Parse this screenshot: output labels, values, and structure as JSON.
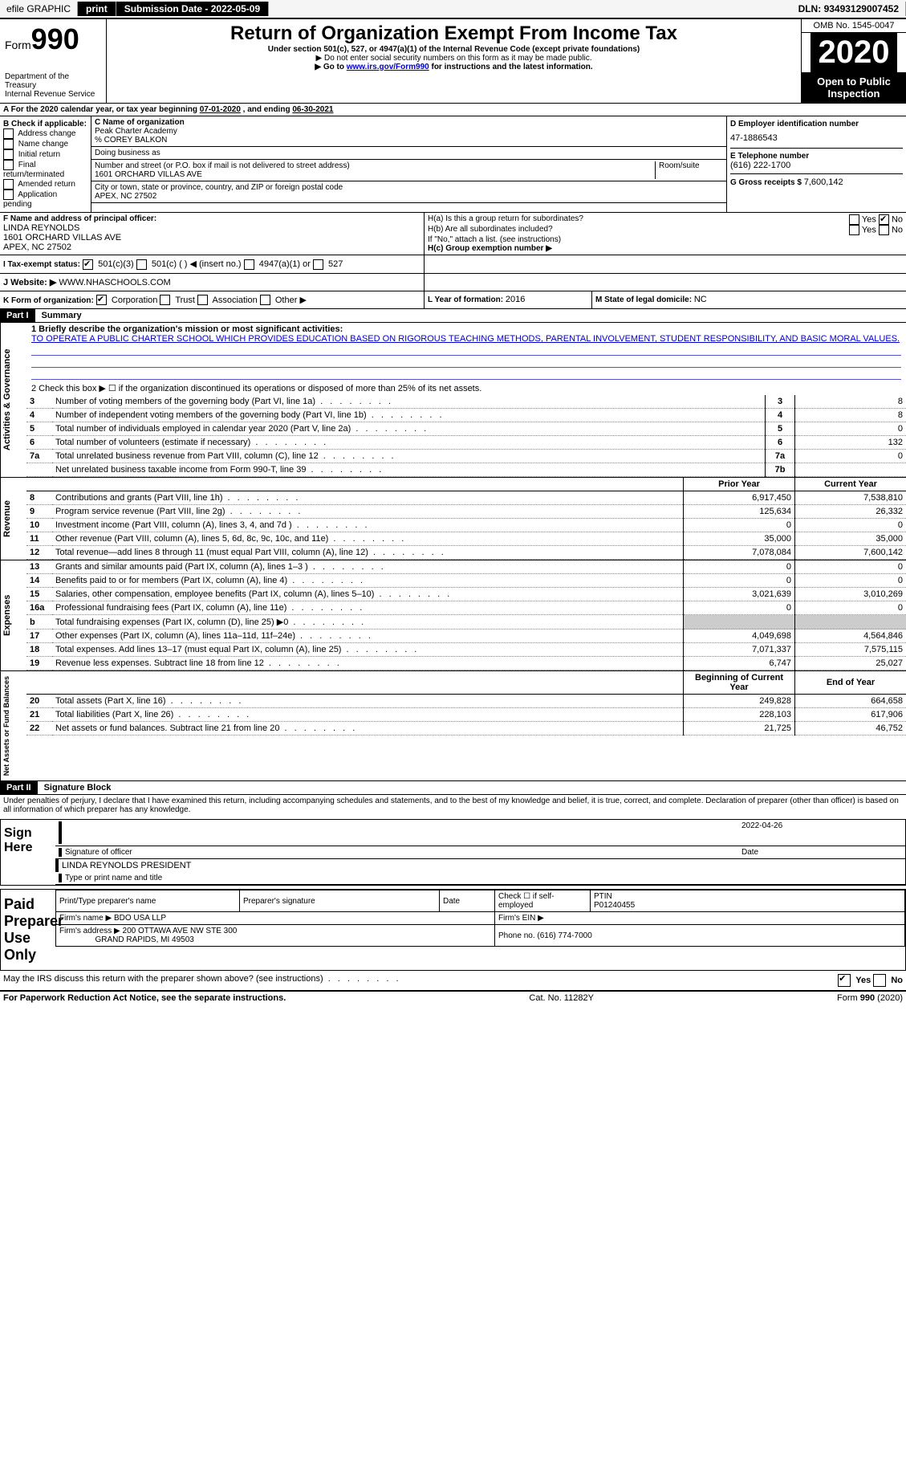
{
  "topbar": {
    "efile": "efile GRAPHIC",
    "print": "print",
    "submission_label": "Submission Date - ",
    "submission_date": "2022-05-09",
    "dln_label": "DLN: ",
    "dln": "93493129007452"
  },
  "header": {
    "form_label": "Form",
    "form_number": "990",
    "dept": "Department of the Treasury",
    "irs": "Internal Revenue Service",
    "title": "Return of Organization Exempt From Income Tax",
    "subtitle": "Under section 501(c), 527, or 4947(a)(1) of the Internal Revenue Code (except private foundations)",
    "note1": "▶ Do not enter social security numbers on this form as it may be made public.",
    "note2_pre": "▶ Go to ",
    "note2_link": "www.irs.gov/Form990",
    "note2_post": " for instructions and the latest information.",
    "omb": "OMB No. 1545-0047",
    "year": "2020",
    "open_public": "Open to Public Inspection"
  },
  "sectionA": {
    "text_pre": "A For the 2020 calendar year, or tax year beginning ",
    "begin": "07-01-2020",
    "mid": " , and ending ",
    "end": "06-30-2021"
  },
  "sectionB": {
    "label": "B Check if applicable:",
    "items": [
      "Address change",
      "Name change",
      "Initial return",
      "Final return/terminated",
      "Amended return",
      "Application pending"
    ]
  },
  "sectionC": {
    "name_label": "C Name of organization",
    "name": "Peak Charter Academy",
    "care_of": "% COREY BALKON",
    "dba_label": "Doing business as",
    "addr_label": "Number and street (or P.O. box if mail is not delivered to street address)",
    "room_label": "Room/suite",
    "addr": "1601 ORCHARD VILLAS AVE",
    "city_label": "City or town, state or province, country, and ZIP or foreign postal code",
    "city": "APEX, NC  27502"
  },
  "sectionD": {
    "label": "D Employer identification number",
    "ein": "47-1886543"
  },
  "sectionE": {
    "label": "E Telephone number",
    "phone": "(616) 222-1700"
  },
  "sectionG": {
    "label": "G Gross receipts $ ",
    "amount": "7,600,142"
  },
  "sectionF": {
    "label": "F  Name and address of principal officer:",
    "name": "LINDA REYNOLDS",
    "addr1": "1601 ORCHARD VILLAS AVE",
    "addr2": "APEX, NC  27502"
  },
  "sectionH": {
    "a": "H(a)  Is this a group return for subordinates?",
    "b": "H(b)  Are all subordinates included?",
    "b_note": "If \"No,\" attach a list. (see instructions)",
    "c": "H(c)  Group exemption number ▶",
    "yes": "Yes",
    "no": "No"
  },
  "sectionI": {
    "label": "I    Tax-exempt status:",
    "o1": "501(c)(3)",
    "o2": "501(c) (   ) ◀ (insert no.)",
    "o3": "4947(a)(1) or",
    "o4": "527"
  },
  "sectionJ": {
    "label": "J    Website: ▶",
    "value": " WWW.NHASCHOOLS.COM"
  },
  "sectionK": {
    "label": "K Form of organization:",
    "o1": "Corporation",
    "o2": "Trust",
    "o3": "Association",
    "o4": "Other ▶"
  },
  "sectionL": {
    "label": "L Year of formation: ",
    "val": "2016"
  },
  "sectionM": {
    "label": "M State of legal domicile: ",
    "val": "NC"
  },
  "parts": {
    "p1": "Part I",
    "p1t": "Summary",
    "p2": "Part II",
    "p2t": "Signature Block"
  },
  "summary": {
    "l1": "1   Briefly describe the organization's mission or most significant activities:",
    "mission": "TO OPERATE A PUBLIC CHARTER SCHOOL WHICH PROVIDES EDUCATION BASED ON RIGOROUS TEACHING METHODS, PARENTAL INVOLVEMENT, STUDENT RESPONSIBILITY, AND BASIC MORAL VALUES.",
    "l2": "2   Check this box ▶ ☐  if the organization discontinued its operations or disposed of more than 25% of its net assets.",
    "rows_gov": [
      {
        "n": "3",
        "t": "Number of voting members of the governing body (Part VI, line 1a)",
        "l": "3",
        "v": "8"
      },
      {
        "n": "4",
        "t": "Number of independent voting members of the governing body (Part VI, line 1b)",
        "l": "4",
        "v": "8"
      },
      {
        "n": "5",
        "t": "Total number of individuals employed in calendar year 2020 (Part V, line 2a)",
        "l": "5",
        "v": "0"
      },
      {
        "n": "6",
        "t": "Total number of volunteers (estimate if necessary)",
        "l": "6",
        "v": "132"
      },
      {
        "n": "7a",
        "t": "Total unrelated business revenue from Part VIII, column (C), line 12",
        "l": "7a",
        "v": "0"
      },
      {
        "n": "",
        "t": "Net unrelated business taxable income from Form 990-T, line 39",
        "l": "7b",
        "v": ""
      }
    ],
    "col_prior": "Prior Year",
    "col_current": "Current Year",
    "rows_rev": [
      {
        "n": "8",
        "t": "Contributions and grants (Part VIII, line 1h)",
        "p": "6,917,450",
        "c": "7,538,810"
      },
      {
        "n": "9",
        "t": "Program service revenue (Part VIII, line 2g)",
        "p": "125,634",
        "c": "26,332"
      },
      {
        "n": "10",
        "t": "Investment income (Part VIII, column (A), lines 3, 4, and 7d )",
        "p": "0",
        "c": "0"
      },
      {
        "n": "11",
        "t": "Other revenue (Part VIII, column (A), lines 5, 6d, 8c, 9c, 10c, and 11e)",
        "p": "35,000",
        "c": "35,000"
      },
      {
        "n": "12",
        "t": "Total revenue—add lines 8 through 11 (must equal Part VIII, column (A), line 12)",
        "p": "7,078,084",
        "c": "7,600,142"
      }
    ],
    "rows_exp": [
      {
        "n": "13",
        "t": "Grants and similar amounts paid (Part IX, column (A), lines 1–3 )",
        "p": "0",
        "c": "0"
      },
      {
        "n": "14",
        "t": "Benefits paid to or for members (Part IX, column (A), line 4)",
        "p": "0",
        "c": "0"
      },
      {
        "n": "15",
        "t": "Salaries, other compensation, employee benefits (Part IX, column (A), lines 5–10)",
        "p": "3,021,639",
        "c": "3,010,269"
      },
      {
        "n": "16a",
        "t": "Professional fundraising fees (Part IX, column (A), line 11e)",
        "p": "0",
        "c": "0"
      },
      {
        "n": "b",
        "t": "Total fundraising expenses (Part IX, column (D), line 25) ▶0",
        "p": "",
        "c": "",
        "shade": true
      },
      {
        "n": "17",
        "t": "Other expenses (Part IX, column (A), lines 11a–11d, 11f–24e)",
        "p": "4,049,698",
        "c": "4,564,846"
      },
      {
        "n": "18",
        "t": "Total expenses. Add lines 13–17 (must equal Part IX, column (A), line 25)",
        "p": "7,071,337",
        "c": "7,575,115"
      },
      {
        "n": "19",
        "t": "Revenue less expenses. Subtract line 18 from line 12",
        "p": "6,747",
        "c": "25,027"
      }
    ],
    "col_begin": "Beginning of Current Year",
    "col_end": "End of Year",
    "rows_net": [
      {
        "n": "20",
        "t": "Total assets (Part X, line 16)",
        "p": "249,828",
        "c": "664,658"
      },
      {
        "n": "21",
        "t": "Total liabilities (Part X, line 26)",
        "p": "228,103",
        "c": "617,906"
      },
      {
        "n": "22",
        "t": "Net assets or fund balances. Subtract line 21 from line 20",
        "p": "21,725",
        "c": "46,752"
      }
    ],
    "vlabels": {
      "gov": "Activities & Governance",
      "rev": "Revenue",
      "exp": "Expenses",
      "net": "Net Assets or Fund Balances"
    }
  },
  "sig": {
    "penalty": "Under penalties of perjury, I declare that I have examined this return, including accompanying schedules and statements, and to the best of my knowledge and belief, it is true, correct, and complete. Declaration of preparer (other than officer) is based on all information of which preparer has any knowledge.",
    "sign_here": "Sign Here",
    "sig_officer": "Signature of officer",
    "date_label": "Date",
    "sig_date": "2022-04-26",
    "officer_name": "LINDA REYNOLDS  PRESIDENT",
    "type_name": "Type or print name and title",
    "paid": "Paid Preparer Use Only",
    "preparer_name_label": "Print/Type preparer's name",
    "preparer_sig_label": "Preparer's signature",
    "check_self": "Check ☐  if self-employed",
    "ptin_label": "PTIN",
    "ptin": "P01240455",
    "firm_name_label": "Firm's name   ▶",
    "firm_name": "BDO USA LLP",
    "firm_ein_label": "Firm's EIN ▶",
    "firm_addr_label": "Firm's address ▶",
    "firm_addr1": "200 OTTAWA AVE NW STE 300",
    "firm_addr2": "GRAND RAPIDS, MI  49503",
    "phone_label": "Phone no. ",
    "phone": "(616) 774-7000",
    "may_irs": "May the IRS discuss this return with the preparer shown above? (see instructions)"
  },
  "footer": {
    "pra": "For Paperwork Reduction Act Notice, see the separate instructions.",
    "cat": "Cat. No. 11282Y",
    "form": "Form 990 (2020)"
  }
}
